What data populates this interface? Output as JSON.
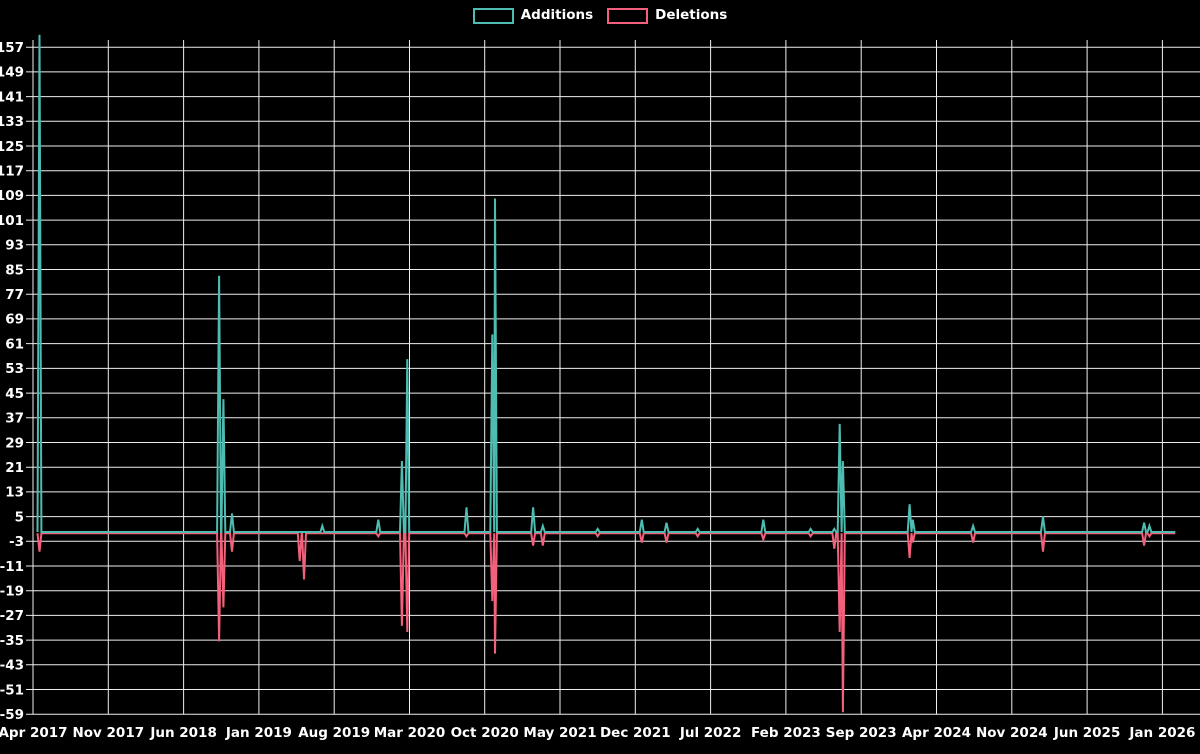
{
  "chart_data": {
    "type": "line",
    "title": "",
    "background": "#000000",
    "grid": true,
    "legend_position": "top-center",
    "legend": [
      {
        "label": "Additions",
        "color": "#4ebcb1"
      },
      {
        "label": "Deletions",
        "color": "#f2607c"
      }
    ],
    "colors": {
      "grid": "#eeeeee",
      "text": "#ffffff",
      "background": "#000000"
    },
    "x_axis": {
      "range_months": [
        0,
        108.5
      ],
      "ticks": [
        {
          "label": "Apr 2017",
          "month": 0
        },
        {
          "label": "Nov 2017",
          "month": 7
        },
        {
          "label": "Jun 2018",
          "month": 14
        },
        {
          "label": "Jan 2019",
          "month": 21
        },
        {
          "label": "Aug 2019",
          "month": 28
        },
        {
          "label": "Mar 2020",
          "month": 35
        },
        {
          "label": "Oct 2020",
          "month": 42
        },
        {
          "label": "May 2021",
          "month": 49
        },
        {
          "label": "Dec 2021",
          "month": 56
        },
        {
          "label": "Jul 2022",
          "month": 63
        },
        {
          "label": "Feb 2023",
          "month": 70
        },
        {
          "label": "Sep 2023",
          "month": 77
        },
        {
          "label": "Apr 2024",
          "month": 84
        },
        {
          "label": "Nov 2024",
          "month": 91
        },
        {
          "label": "Jun 2025",
          "month": 98
        },
        {
          "label": "Jan 2026",
          "month": 105
        }
      ]
    },
    "y_axis": {
      "range": [
        -59,
        161.6
      ],
      "ticks": [
        157,
        149,
        141,
        133,
        125,
        117,
        109,
        101,
        93,
        85,
        77,
        69,
        61,
        53,
        45,
        37,
        29,
        21,
        13,
        5,
        -3,
        -11,
        -19,
        -27,
        -35,
        -43,
        -51,
        -59
      ]
    },
    "baseline": 0,
    "spike_half_width_months": 0.18,
    "series_end_month": 106.2,
    "events": [
      {
        "m": 0.6,
        "date": "2017-05",
        "additions": 161,
        "deletions": -6
      },
      {
        "m": 17.3,
        "date": "2018-09",
        "additions": 83,
        "deletions": -35
      },
      {
        "m": 17.7,
        "date": "2018-09",
        "additions": 43,
        "deletions": -24
      },
      {
        "m": 18.5,
        "date": "2018-10",
        "additions": 6,
        "deletions": -6
      },
      {
        "m": 24.8,
        "date": "2019-04",
        "additions": 0,
        "deletions": -9
      },
      {
        "m": 25.2,
        "date": "2019-05",
        "additions": 0,
        "deletions": -15
      },
      {
        "m": 26.9,
        "date": "2019-07",
        "additions": 2,
        "deletions": 0
      },
      {
        "m": 32.1,
        "date": "2019-12",
        "additions": 4,
        "deletions": -1
      },
      {
        "m": 34.3,
        "date": "2020-02",
        "additions": 23,
        "deletions": -30
      },
      {
        "m": 34.8,
        "date": "2020-03",
        "additions": 56,
        "deletions": -32
      },
      {
        "m": 40.3,
        "date": "2020-08",
        "additions": 8,
        "deletions": -1
      },
      {
        "m": 42.7,
        "date": "2020-10",
        "additions": 64,
        "deletions": -22
      },
      {
        "m": 42.95,
        "date": "2020-11",
        "additions": 108,
        "deletions": -39
      },
      {
        "m": 46.5,
        "date": "2021-02",
        "additions": 8,
        "deletions": -4
      },
      {
        "m": 47.4,
        "date": "2021-03",
        "additions": 2,
        "deletions": -4
      },
      {
        "m": 52.5,
        "date": "2021-08",
        "additions": 1,
        "deletions": -1
      },
      {
        "m": 56.6,
        "date": "2021-12",
        "additions": 4,
        "deletions": -3
      },
      {
        "m": 58.9,
        "date": "2022-03",
        "additions": 3,
        "deletions": -3
      },
      {
        "m": 61.8,
        "date": "2022-06",
        "additions": 1,
        "deletions": -1
      },
      {
        "m": 67.9,
        "date": "2022-12",
        "additions": 4,
        "deletions": -2
      },
      {
        "m": 72.3,
        "date": "2023-04",
        "additions": 1,
        "deletions": -1
      },
      {
        "m": 74.5,
        "date": "2023-06",
        "additions": 1,
        "deletions": -5
      },
      {
        "m": 75.0,
        "date": "2023-07",
        "additions": 35,
        "deletions": -32
      },
      {
        "m": 75.3,
        "date": "2023-07",
        "additions": 23,
        "deletions": -58
      },
      {
        "m": 81.5,
        "date": "2024-01",
        "additions": 9,
        "deletions": -8
      },
      {
        "m": 81.8,
        "date": "2024-02",
        "additions": 4,
        "deletions": -3
      },
      {
        "m": 87.4,
        "date": "2024-07",
        "additions": 2,
        "deletions": -3
      },
      {
        "m": 93.9,
        "date": "2025-02",
        "additions": 5,
        "deletions": -6
      },
      {
        "m": 103.3,
        "date": "2025-11",
        "additions": 3,
        "deletions": -4
      },
      {
        "m": 103.8,
        "date": "2025-12",
        "additions": 2,
        "deletions": -1
      }
    ]
  }
}
